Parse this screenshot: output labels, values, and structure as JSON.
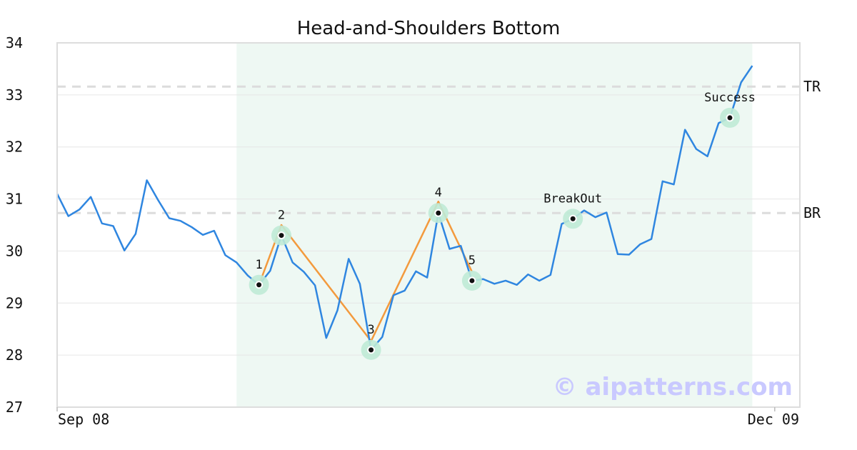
{
  "chart_data": {
    "type": "line",
    "title": "Head-and-Shoulders Bottom",
    "xlabel": "",
    "ylabel": "",
    "ylim": [
      27,
      34
    ],
    "y_ticks": [
      27,
      28,
      29,
      30,
      31,
      32,
      33,
      34
    ],
    "x_tick_labels": [
      {
        "index": 0,
        "label": "Sep 08"
      },
      {
        "index": 64,
        "label": "Dec 09"
      }
    ],
    "grid": "horizontal",
    "series": [
      {
        "color": "#2f86e0",
        "values": [
          31.1,
          30.67,
          30.8,
          31.04,
          30.53,
          30.48,
          30.01,
          30.33,
          31.36,
          30.98,
          30.63,
          30.58,
          30.46,
          30.31,
          30.39,
          29.92,
          29.78,
          29.53,
          29.35,
          29.62,
          30.3,
          29.78,
          29.6,
          29.34,
          28.33,
          28.86,
          29.85,
          29.37,
          28.1,
          28.35,
          29.15,
          29.24,
          29.61,
          29.49,
          30.73,
          30.04,
          30.1,
          29.43,
          29.46,
          29.37,
          29.43,
          29.35,
          29.55,
          29.43,
          29.54,
          30.52,
          30.62,
          30.78,
          30.65,
          30.74,
          29.94,
          29.93,
          30.13,
          30.23,
          31.34,
          31.28,
          32.33,
          31.96,
          31.82,
          32.46,
          32.56,
          33.24,
          33.56
        ]
      }
    ],
    "pattern": {
      "color": "#f39a3d",
      "points": [
        {
          "label": "1",
          "index": 18,
          "value": 29.35
        },
        {
          "label": "2",
          "index": 20,
          "value": 30.3
        },
        {
          "label": "3",
          "index": 28,
          "value": 28.1
        },
        {
          "label": "4",
          "index": 34,
          "value": 30.73
        },
        {
          "label": "5",
          "index": 37,
          "value": 29.43
        }
      ],
      "pattern_line": [
        {
          "index": 18,
          "value": 29.35
        },
        {
          "index": 20,
          "value": 30.5
        },
        {
          "index": 28,
          "value": 28.27
        },
        {
          "index": 34,
          "value": 30.95
        },
        {
          "index": 37,
          "value": 29.6
        }
      ]
    },
    "events": [
      {
        "label": "BreakOut",
        "index": 46,
        "value": 30.62
      },
      {
        "label": "Success",
        "index": 60,
        "value": 32.56
      }
    ],
    "levels": [
      {
        "label": "TR",
        "value": 33.16
      },
      {
        "label": "BR",
        "value": 30.73
      }
    ],
    "highlight_range": {
      "start_index": 16,
      "end_index": 62,
      "color": "#eef8f3"
    },
    "marker_halo_color": "#bfead6"
  },
  "watermark": "© aipatterns.com"
}
